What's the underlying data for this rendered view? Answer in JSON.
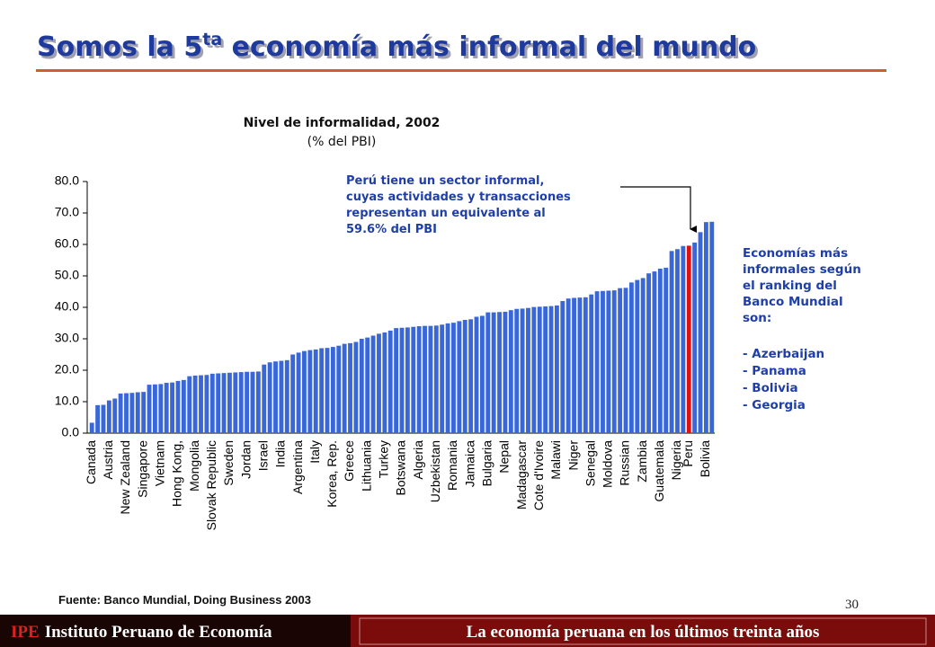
{
  "slide": {
    "title": {
      "before": "Somos la 5",
      "sup": "ta",
      "after": " economía más informal del mundo"
    },
    "page_number": "30",
    "footer": {
      "org_short": "IPE",
      "org_name": "Instituto Peruano de Economía",
      "series_title": "La economía peruana en los últimos treinta años"
    },
    "side_note": {
      "lines": [
        "Economías más",
        "informales según",
        "el ranking del",
        "Banco Mundial",
        "son:"
      ],
      "items": [
        "- Azerbaijan",
        "- Panama",
        "- Bolivia",
        "- Georgia"
      ]
    },
    "source": "Fuente: Banco Mundial, Doing Business 2003"
  },
  "chart_data": {
    "type": "bar",
    "title": "Nivel de informalidad, 2002",
    "subtitle": "(% del PBI)",
    "annotation": [
      "Perú tiene un sector informal,",
      "cuyas actividades y transacciones",
      "representan un equivalente al",
      "59.6% del PBI"
    ],
    "categories": [
      "Canada",
      null,
      null,
      "Austria",
      null,
      null,
      "New Zealand",
      null,
      null,
      "Singapore",
      null,
      null,
      "Vietnam",
      null,
      null,
      "Hong Kong,",
      null,
      null,
      "Mongolia",
      null,
      null,
      "Slovak Republic",
      null,
      null,
      "Sweden",
      null,
      null,
      "Jordan",
      null,
      null,
      "Israel",
      null,
      null,
      "India",
      null,
      null,
      "Argentina",
      null,
      null,
      "Italy",
      null,
      null,
      "Korea, Rep.",
      null,
      null,
      "Greece",
      null,
      null,
      "Lithuania",
      null,
      null,
      "Turkey",
      null,
      null,
      "Botswana",
      null,
      null,
      "Algeria",
      null,
      null,
      "Uzbekistan",
      null,
      null,
      "Romania",
      null,
      null,
      "Jamaica",
      null,
      null,
      "Bulgaria",
      null,
      null,
      "Nepal",
      null,
      null,
      "Madagascar",
      null,
      null,
      "Cote d'Ivoire",
      null,
      null,
      "Malawi",
      null,
      null,
      "Niger",
      null,
      null,
      "Senegal",
      null,
      null,
      "Moldova",
      null,
      null,
      "Russian",
      null,
      null,
      "Zambia",
      null,
      null,
      "Guatemala",
      null,
      null,
      "Nigeria",
      null,
      "Peru",
      null,
      null,
      "Bolivia",
      null
    ],
    "values": [
      3.3,
      8.9,
      9.0,
      10.4,
      11.0,
      12.6,
      12.7,
      12.8,
      13.0,
      13.1,
      15.4,
      15.5,
      15.6,
      16.0,
      16.1,
      16.6,
      16.9,
      18.1,
      18.3,
      18.4,
      18.5,
      18.9,
      19.0,
      19.1,
      19.2,
      19.3,
      19.4,
      19.5,
      19.5,
      19.6,
      21.8,
      22.5,
      22.8,
      23.0,
      23.2,
      25.0,
      25.6,
      26.1,
      26.4,
      26.6,
      27.0,
      27.1,
      27.4,
      27.8,
      28.4,
      28.6,
      29.0,
      30.0,
      30.4,
      31.0,
      31.6,
      32.0,
      32.6,
      33.4,
      33.5,
      33.6,
      33.8,
      34.0,
      34.1,
      34.1,
      34.2,
      34.5,
      34.9,
      35.1,
      35.6,
      36.0,
      36.2,
      37.0,
      37.3,
      38.4,
      38.4,
      38.5,
      38.6,
      39.1,
      39.5,
      39.6,
      39.8,
      40.1,
      40.2,
      40.3,
      40.4,
      40.6,
      42.0,
      42.8,
      43.0,
      43.1,
      43.2,
      44.1,
      45.1,
      45.2,
      45.3,
      45.4,
      46.1,
      46.2,
      47.9,
      48.7,
      49.3,
      50.8,
      51.4,
      52.3,
      52.6,
      57.9,
      58.5,
      59.5,
      59.6,
      60.6,
      63.9,
      67.1,
      67.2
    ],
    "color": "#3a67d8",
    "highlight": {
      "category": "Peru",
      "color": "#e01010"
    },
    "ylim": [
      0,
      80
    ],
    "yticks": [
      {
        "value": 0,
        "label": "0.0"
      },
      {
        "value": 10,
        "label": "10.0"
      },
      {
        "value": 20,
        "label": "20.0"
      },
      {
        "value": 30,
        "label": "30.0"
      },
      {
        "value": 40,
        "label": "40.0"
      },
      {
        "value": 50,
        "label": "50.0"
      },
      {
        "value": 60,
        "label": "60.0"
      },
      {
        "value": 70,
        "label": "70.0"
      },
      {
        "value": 80,
        "label": "80.0"
      }
    ],
    "grid": false
  }
}
